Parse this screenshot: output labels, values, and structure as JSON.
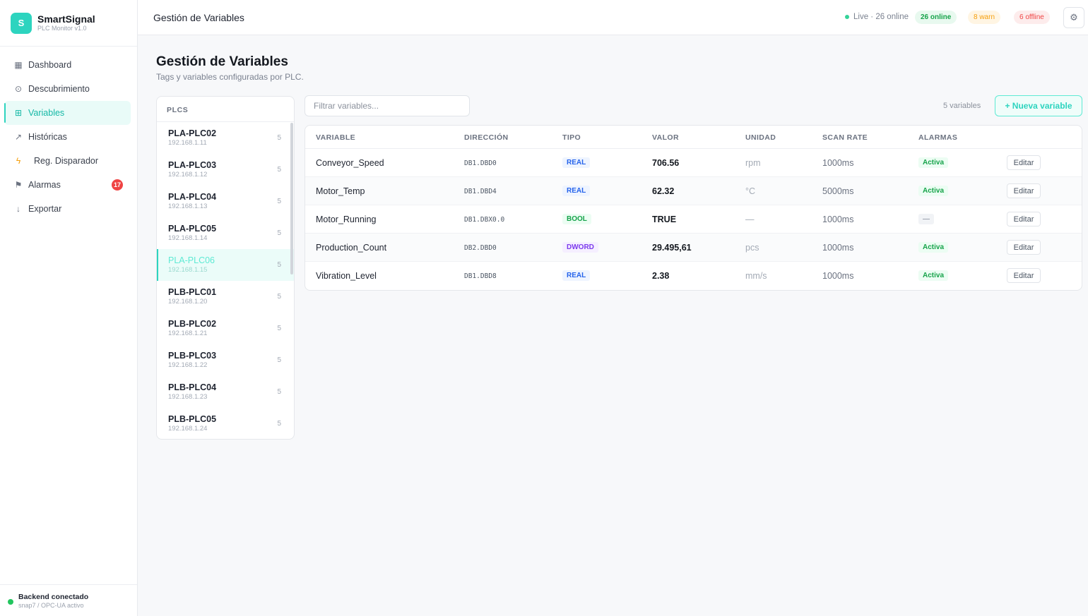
{
  "brand": {
    "logo_letter": "S",
    "name": "SmartSignal",
    "subtitle": "PLC Monitor v1.0"
  },
  "nav": [
    {
      "label": "Dashboard",
      "icon": "grid-icon"
    },
    {
      "label": "Descubrimiento",
      "icon": "target-icon"
    },
    {
      "label": "Variables",
      "icon": "table-icon",
      "active": true
    },
    {
      "label": "Históricas",
      "icon": "trend-icon"
    },
    {
      "label": "Reg. Disparador",
      "icon": "bolt-icon"
    },
    {
      "label": "Alarmas",
      "icon": "flag-icon",
      "badge": "17"
    },
    {
      "label": "Exportar",
      "icon": "download-icon"
    }
  ],
  "backend": {
    "title": "Backend conectado",
    "subtitle": "snap7 / OPC-UA activo"
  },
  "topbar": {
    "title": "Gestión de Variables",
    "live": "Live · 26 online",
    "online": "26 online",
    "warn": "8 warn",
    "offline": "6 offline"
  },
  "page": {
    "title": "Gestión de Variables",
    "subtitle": "Tags y variables configuradas por PLC."
  },
  "plcs": {
    "header": "PLCS",
    "items": [
      {
        "name": "PLA-PLC02",
        "ip": "192.168.1.11",
        "count": "5"
      },
      {
        "name": "PLA-PLC03",
        "ip": "192.168.1.12",
        "count": "5"
      },
      {
        "name": "PLA-PLC04",
        "ip": "192.168.1.13",
        "count": "5"
      },
      {
        "name": "PLA-PLC05",
        "ip": "192.168.1.14",
        "count": "5"
      },
      {
        "name": "PLA-PLC06",
        "ip": "192.168.1.15",
        "count": "5",
        "active": true
      },
      {
        "name": "PLB-PLC01",
        "ip": "192.168.1.20",
        "count": "5"
      },
      {
        "name": "PLB-PLC02",
        "ip": "192.168.1.21",
        "count": "5"
      },
      {
        "name": "PLB-PLC03",
        "ip": "192.168.1.22",
        "count": "5"
      },
      {
        "name": "PLB-PLC04",
        "ip": "192.168.1.23",
        "count": "5"
      },
      {
        "name": "PLB-PLC05",
        "ip": "192.168.1.24",
        "count": "5"
      }
    ]
  },
  "toolbar": {
    "filter_placeholder": "Filtrar variables...",
    "count": "5 variables",
    "new_label": "+ Nueva variable"
  },
  "table": {
    "columns": [
      "VARIABLE",
      "DIRECCIÓN",
      "TIPO",
      "VALOR",
      "UNIDAD",
      "SCAN RATE",
      "ALARMAS"
    ],
    "edit_label": "Editar",
    "rows": [
      {
        "variable": "Conveyor_Speed",
        "address": "DB1.DBD0",
        "type": "REAL",
        "value": "706.56",
        "unit": "rpm",
        "scan": "1000ms",
        "alarm": "Activa"
      },
      {
        "variable": "Motor_Temp",
        "address": "DB1.DBD4",
        "type": "REAL",
        "value": "62.32",
        "unit": "°C",
        "scan": "5000ms",
        "alarm": "Activa"
      },
      {
        "variable": "Motor_Running",
        "address": "DB1.DBX0.0",
        "type": "BOOL",
        "value": "TRUE",
        "unit": "—",
        "scan": "1000ms",
        "alarm": "—"
      },
      {
        "variable": "Production_Count",
        "address": "DB2.DBD0",
        "type": "DWORD",
        "value": "29.495,61",
        "unit": "pcs",
        "scan": "1000ms",
        "alarm": "Activa"
      },
      {
        "variable": "Vibration_Level",
        "address": "DB1.DBD8",
        "type": "REAL",
        "value": "2.38",
        "unit": "mm/s",
        "scan": "1000ms",
        "alarm": "Activa"
      }
    ]
  }
}
